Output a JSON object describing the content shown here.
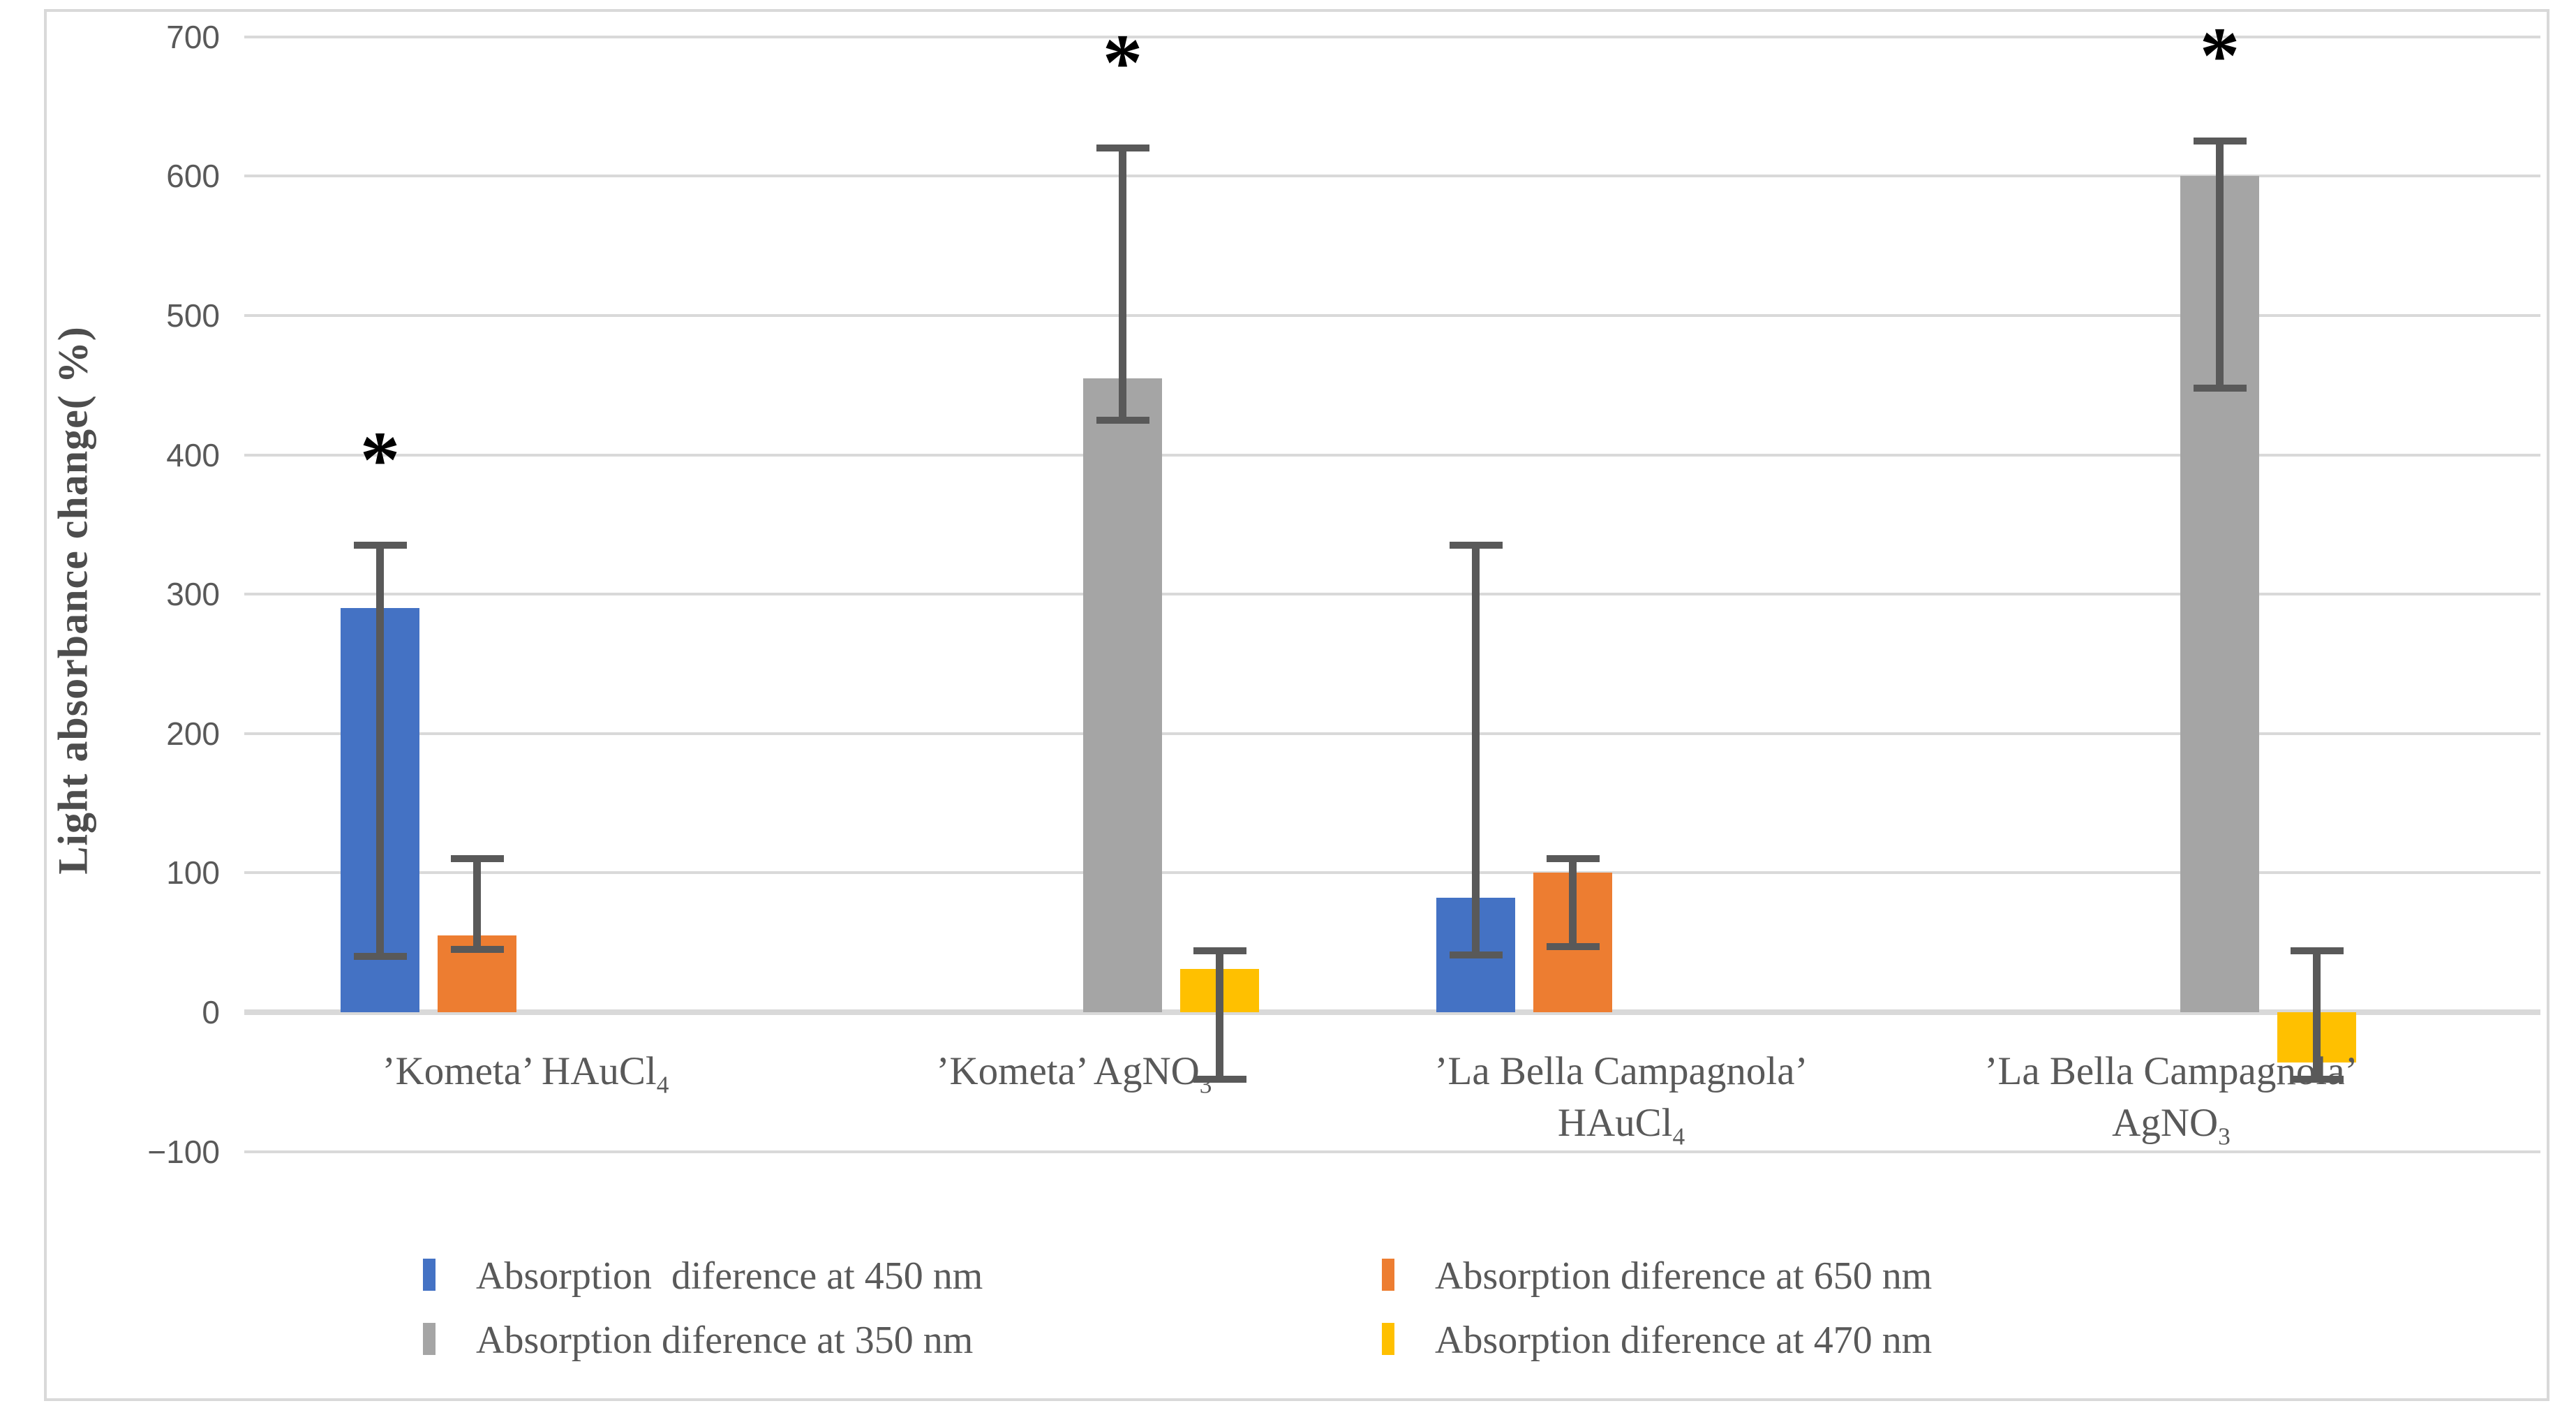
{
  "chart_data": {
    "type": "bar",
    "title": "",
    "ylabel": "Light absorbance change( %)",
    "ylim": [
      -100,
      700
    ],
    "ytick_step": 100,
    "yticks": [
      700,
      600,
      500,
      400,
      300,
      200,
      100,
      0,
      -100
    ],
    "grid": true,
    "legend_position": "bottom",
    "categories": [
      {
        "runs": [
          {
            "t": "’Kometa’ HAuCl"
          },
          {
            "t": "4",
            "sub": true
          }
        ]
      },
      {
        "runs": [
          {
            "t": "’Kometa’ AgNO"
          },
          {
            "t": "3",
            "sub": true
          }
        ]
      },
      {
        "runs": [
          {
            "t": "’La Bella Campagnola’"
          },
          {
            "t": "",
            "br": true
          },
          {
            "t": "HAuCl"
          },
          {
            "t": "4",
            "sub": true
          }
        ]
      },
      {
        "runs": [
          {
            "t": "’La Bella Campagnola’"
          },
          {
            "t": "",
            "br": true
          },
          {
            "t": "AgNO"
          },
          {
            "t": "3",
            "sub": true
          }
        ]
      }
    ],
    "series": [
      {
        "name": "Absorption  diference at 450 nm",
        "color": "#4472C4",
        "values": [
          290,
          null,
          82,
          null
        ],
        "err_top": [
          335,
          null,
          335,
          null
        ],
        "err_bottom": [
          40,
          null,
          41,
          null
        ],
        "stars": [
          true,
          false,
          false,
          false
        ]
      },
      {
        "name": "Absorption diference at 650 nm",
        "color": "#ED7D31",
        "values": [
          55,
          null,
          100,
          null
        ],
        "err_top": [
          110,
          null,
          110,
          null
        ],
        "err_bottom": [
          45,
          null,
          47,
          null
        ],
        "stars": [
          false,
          false,
          false,
          false
        ]
      },
      {
        "name": "Absorption diference at 350 nm",
        "color": "#A5A5A5",
        "values": [
          null,
          455,
          null,
          600
        ],
        "err_top": [
          null,
          620,
          null,
          625
        ],
        "err_bottom": [
          null,
          425,
          null,
          448
        ],
        "stars": [
          false,
          true,
          false,
          true
        ]
      },
      {
        "name": "Absorption diference at 470 nm",
        "color": "#FFC000",
        "values": [
          null,
          31,
          null,
          -36
        ],
        "err_top": [
          null,
          44,
          null,
          44
        ],
        "err_bottom": [
          null,
          -48,
          null,
          -48
        ],
        "stars": [
          false,
          false,
          false,
          false
        ]
      }
    ],
    "annotations": {
      "significance_marker": "*"
    },
    "colors": {
      "gridline": "#D9D9D9",
      "zero_line": "#D9D9D9",
      "error_bar": "#595959",
      "tick_text": "#595959",
      "label_text": "#595959",
      "star": "#000000",
      "frame": "#D9D9D9"
    }
  }
}
